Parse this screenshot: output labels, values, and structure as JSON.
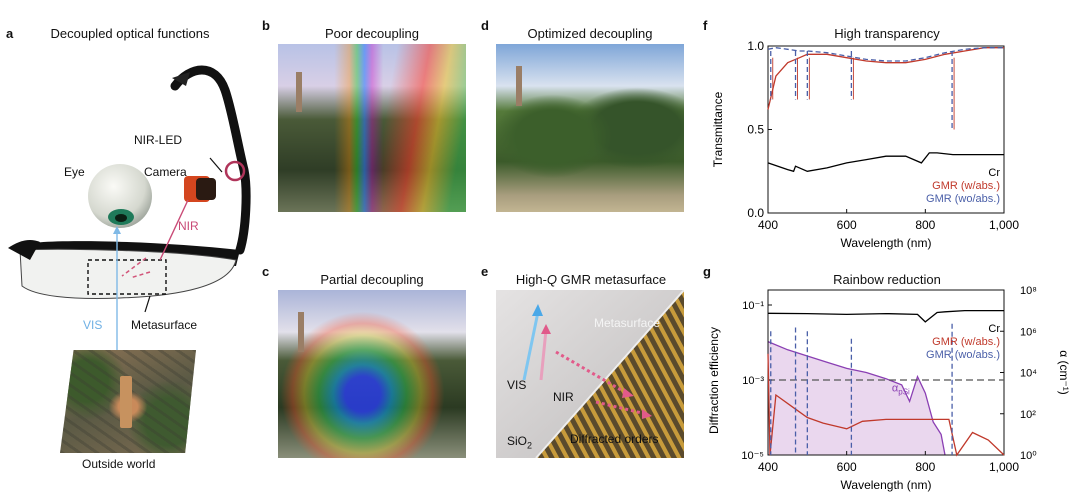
{
  "panels": {
    "a": {
      "label": "a",
      "title": "Decoupled optical functions",
      "callouts": {
        "nir_led": "NIR-LED",
        "eye": "Eye",
        "camera": "Camera",
        "nir": "NIR",
        "vis": "VIS",
        "metasurface": "Metasurface",
        "outside": "Outside world"
      }
    },
    "b": {
      "label": "b",
      "title": "Poor decoupling"
    },
    "c": {
      "label": "c",
      "title": "Partial decoupling"
    },
    "d": {
      "label": "d",
      "title": "Optimized decoupling"
    },
    "e": {
      "label": "e",
      "title_prefix": "High-",
      "title_q": "Q",
      "title_suffix": " GMR metasurface",
      "callouts": {
        "metasurface": "Metasurface",
        "vis": "VIS",
        "nir": "NIR",
        "sio2": "SiO",
        "sio2_sub": "2",
        "diffracted": "Diffracted orders"
      }
    }
  },
  "colors": {
    "cr": "#000000",
    "gmr_abs": "#c0392b",
    "gmr_wo": "#4a5fa8",
    "alpha_fill": "#ead7ee",
    "alpha_line": "#8a3fb3"
  },
  "chart_data": [
    {
      "panel": "f",
      "label": "f",
      "type": "line",
      "title": "High transparency",
      "xlabel": "Wavelength (nm)",
      "ylabel": "Transmittance",
      "xlim": [
        400,
        1000
      ],
      "ylim": [
        0,
        1
      ],
      "xticks": [
        "400",
        "600",
        "800",
        "1,000"
      ],
      "yticks": [
        "0.0",
        "0.5",
        "1.0"
      ],
      "legend_position": "bottom-right",
      "series": [
        {
          "name": "Cr",
          "color": "#000000",
          "style": "solid",
          "x": [
            400,
            450,
            465,
            470,
            500,
            550,
            600,
            650,
            700,
            750,
            790,
            810,
            830,
            870,
            920,
            1000
          ],
          "y": [
            0.3,
            0.26,
            0.25,
            0.28,
            0.25,
            0.27,
            0.3,
            0.32,
            0.34,
            0.34,
            0.3,
            0.36,
            0.36,
            0.35,
            0.35,
            0.35
          ]
        },
        {
          "name": "GMR (w/abs.)",
          "color": "#c0392b",
          "style": "solid",
          "x": [
            400,
            420,
            450,
            480,
            500,
            550,
            600,
            650,
            700,
            750,
            800,
            850,
            900,
            950,
            1000
          ],
          "y": [
            0.62,
            0.82,
            0.9,
            0.93,
            0.95,
            0.95,
            0.93,
            0.91,
            0.9,
            0.9,
            0.92,
            0.95,
            0.97,
            0.99,
            0.99
          ]
        },
        {
          "name": "GMR (wo/abs.)",
          "color": "#4a5fa8",
          "style": "dashed",
          "x": [
            400,
            420,
            450,
            480,
            500,
            550,
            600,
            650,
            700,
            750,
            800,
            850,
            900,
            950,
            1000
          ],
          "y": [
            0.98,
            0.99,
            0.98,
            0.97,
            0.97,
            0.96,
            0.94,
            0.92,
            0.91,
            0.91,
            0.93,
            0.96,
            0.98,
            0.99,
            0.99
          ]
        }
      ],
      "resonances_nm": [
        407,
        470,
        500,
        612,
        868
      ]
    },
    {
      "panel": "g",
      "label": "g",
      "type": "line",
      "title": "Rainbow reduction",
      "xlabel": "Wavelength (nm)",
      "ylabel": "Diffraction efficiency",
      "ylabel_right": "α (cm⁻¹)",
      "xlim": [
        400,
        1000
      ],
      "ylim_log10": [
        -5,
        -0.6
      ],
      "ylim_right_log10": [
        0,
        8
      ],
      "xticks": [
        "400",
        "600",
        "800",
        "1,000"
      ],
      "yticks": [
        "10⁻⁵",
        "10⁻³",
        "10⁻¹"
      ],
      "yticks_right": [
        "10⁰",
        "10²",
        "10⁴",
        "10⁶",
        "10⁸"
      ],
      "legend_position": "top-right",
      "annotation": {
        "base": "α",
        "sub": "pSi",
        "x_nm": 715,
        "y_log10": -3.3
      },
      "series": [
        {
          "name": "Cr",
          "color": "#000000",
          "style": "solid",
          "axis": "left",
          "x": [
            400,
            500,
            600,
            700,
            780,
            800,
            830,
            850,
            900,
            1000
          ],
          "y_log10": [
            -1.22,
            -1.23,
            -1.25,
            -1.23,
            -1.25,
            -1.45,
            -1.2,
            -1.18,
            -1.15,
            -1.15
          ]
        },
        {
          "name": "GMR (w/abs.)",
          "color": "#c0392b",
          "style": "solid",
          "axis": "left",
          "x": [
            400,
            405,
            420,
            460,
            500,
            540,
            580,
            600,
            640,
            700,
            760,
            800,
            840,
            860,
            880,
            920,
            960,
            1000
          ],
          "y_log10": [
            -2.3,
            -5.0,
            -3.4,
            -3.7,
            -4.0,
            -4.15,
            -4.25,
            -4.3,
            -4.1,
            -4.05,
            -4.05,
            -4.05,
            -4.05,
            -4.05,
            -5.0,
            -4.4,
            -4.6,
            -5.0
          ]
        },
        {
          "name": "GMR (wo/abs.)",
          "color": "#4a5fa8",
          "style": "dashed",
          "axis": "left",
          "x": [
            407,
            470,
            500,
            612,
            868
          ],
          "y_log10": [
            -1.7,
            -1.6,
            -1.7,
            -1.9,
            -1.5
          ]
        },
        {
          "name": "α_pSi",
          "color": "#8a3fb3",
          "style": "solid",
          "axis": "right",
          "filled": true,
          "x": [
            400,
            450,
            500,
            550,
            600,
            650,
            700,
            740,
            760,
            780,
            800,
            820,
            840,
            850
          ],
          "y_log10": [
            5.5,
            5.1,
            4.8,
            4.5,
            4.2,
            4.0,
            3.7,
            3.4,
            2.6,
            3.8,
            3.0,
            1.6,
            1.0,
            0.0
          ]
        }
      ],
      "reference_line": {
        "style": "dashed",
        "y_log10": -3
      },
      "resonances_nm": [
        407,
        470,
        500,
        612,
        868
      ]
    }
  ]
}
